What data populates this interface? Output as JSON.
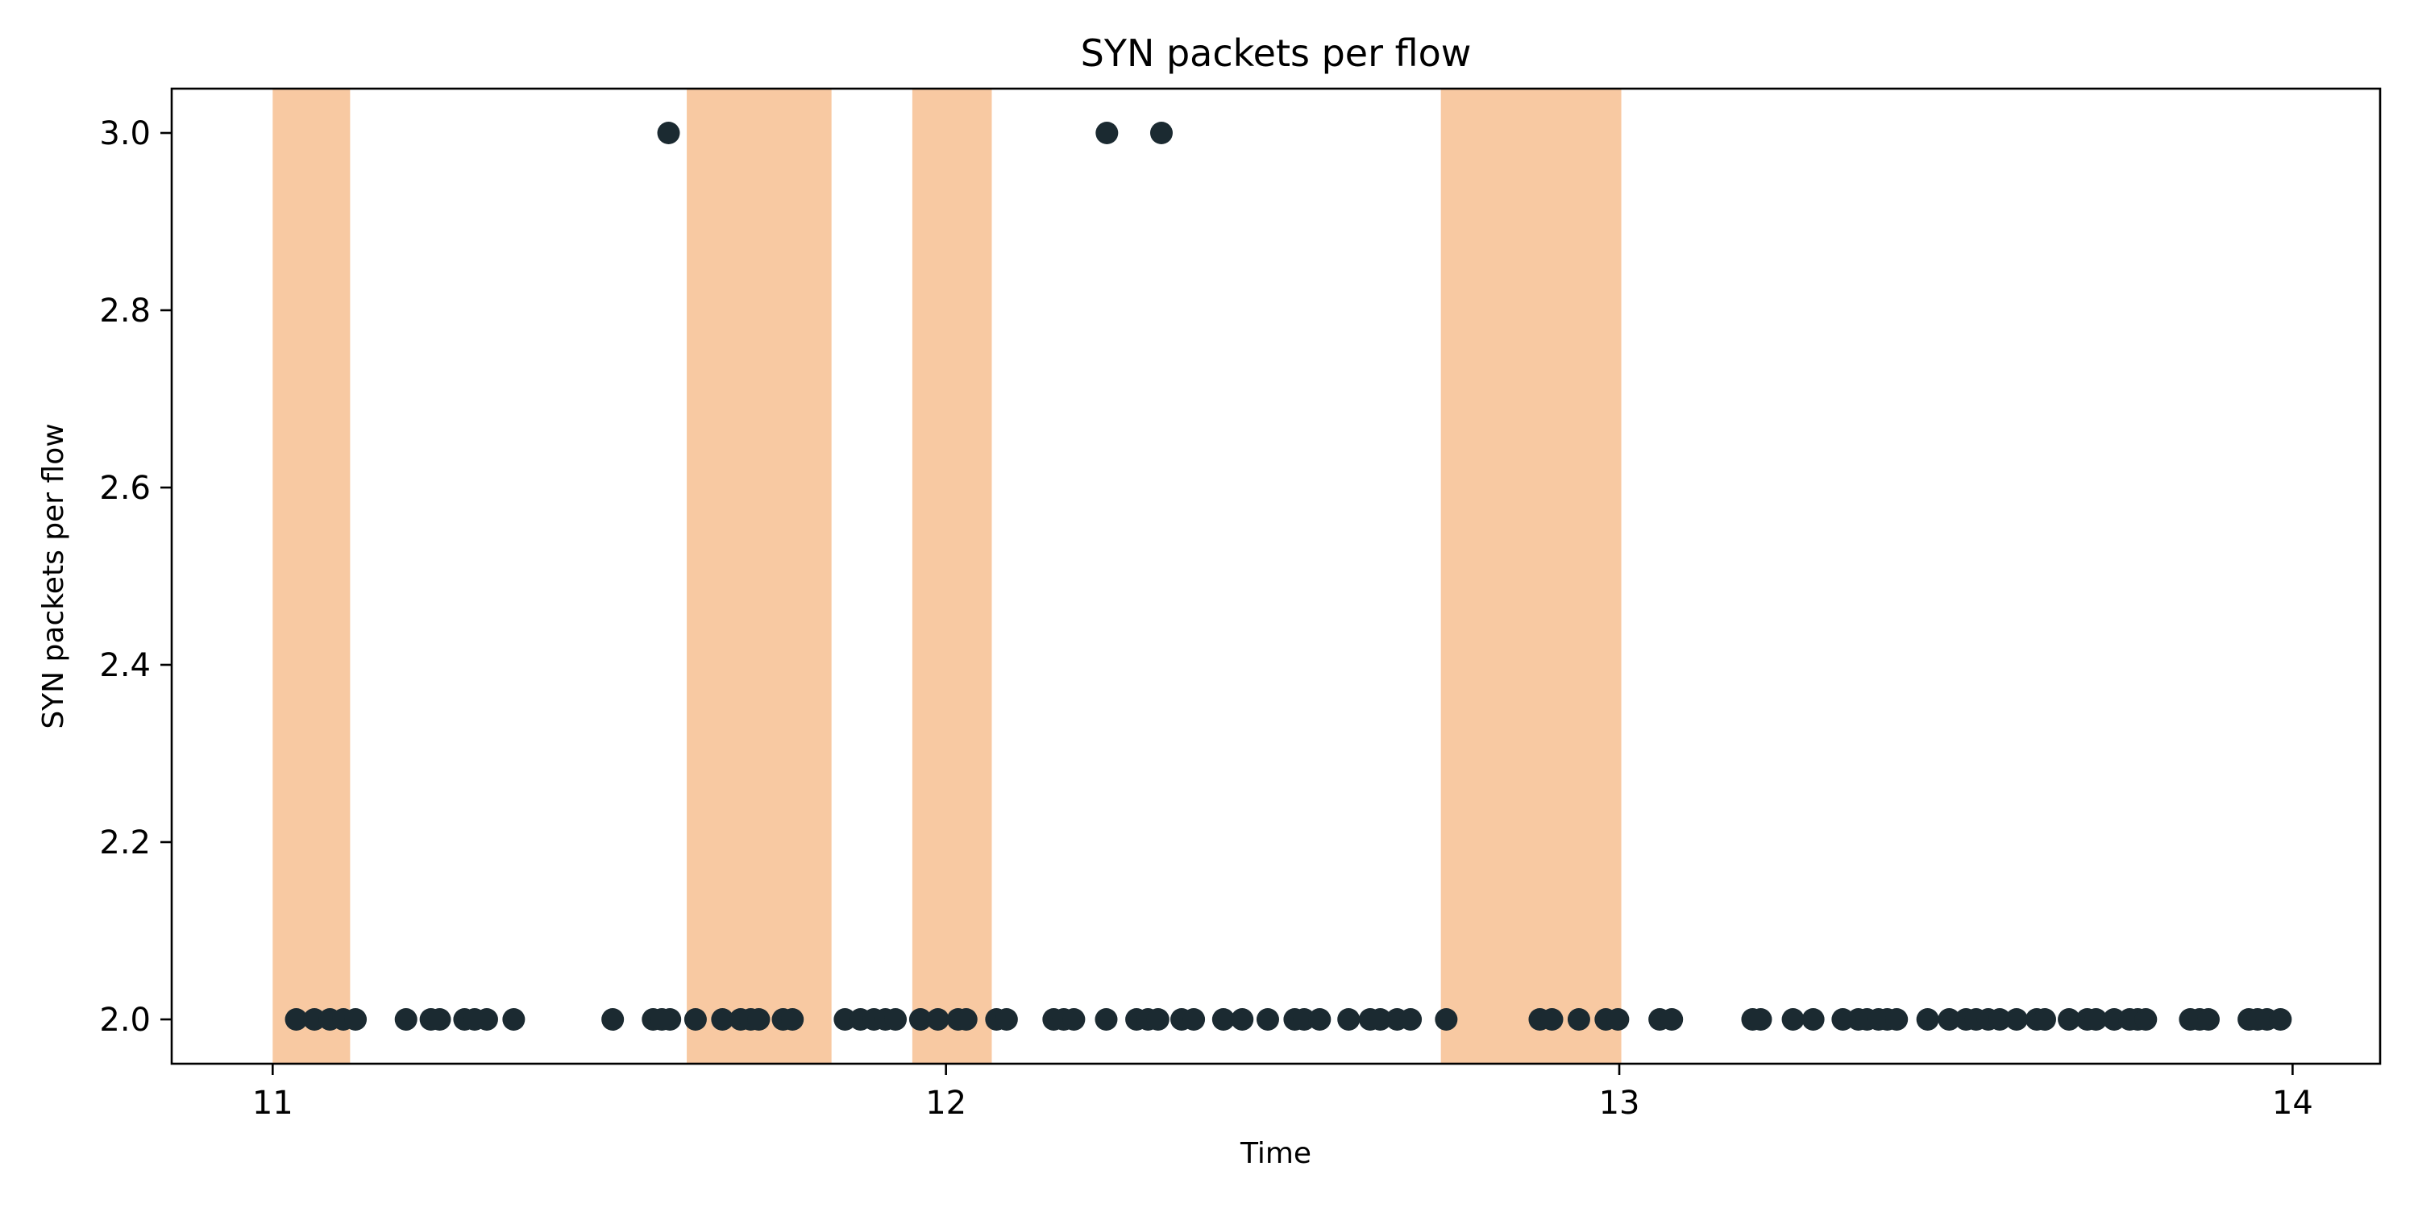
{
  "chart_data": {
    "type": "scatter",
    "title": "SYN packets per flow",
    "xlabel": "Time",
    "ylabel": "SYN packets per flow",
    "xlim": [
      10.85,
      14.13
    ],
    "ylim": [
      1.95,
      3.05
    ],
    "x_ticks": [
      11,
      12,
      13,
      14
    ],
    "y_ticks": [
      2.0,
      2.2,
      2.4,
      2.6,
      2.8,
      3.0
    ],
    "x_tick_labels": [
      "11",
      "12",
      "13",
      "14"
    ],
    "y_tick_labels": [
      "2.0",
      "2.2",
      "2.4",
      "2.6",
      "2.8",
      "3.0"
    ],
    "grid": false,
    "marker_color": "#1b2a31",
    "highlight_color": "#f8c9a2",
    "highlight_ranges": [
      [
        11.0,
        11.115
      ],
      [
        11.615,
        11.83
      ],
      [
        11.95,
        12.068
      ],
      [
        12.735,
        13.003
      ]
    ],
    "series": [
      {
        "points": [
          [
            11.588,
            3.0
          ],
          [
            12.239,
            3.0
          ],
          [
            12.32,
            3.0
          ],
          [
            11.035,
            2.0
          ],
          [
            11.062,
            2.0
          ],
          [
            11.085,
            2.0
          ],
          [
            11.105,
            2.0
          ],
          [
            11.123,
            2.0
          ],
          [
            11.198,
            2.0
          ],
          [
            11.235,
            2.0
          ],
          [
            11.248,
            2.0
          ],
          [
            11.285,
            2.0
          ],
          [
            11.3,
            2.0
          ],
          [
            11.318,
            2.0
          ],
          [
            11.358,
            2.0
          ],
          [
            11.505,
            2.0
          ],
          [
            11.565,
            2.0
          ],
          [
            11.578,
            2.0
          ],
          [
            11.59,
            2.0
          ],
          [
            11.628,
            2.0
          ],
          [
            11.668,
            2.0
          ],
          [
            11.695,
            2.0
          ],
          [
            11.71,
            2.0
          ],
          [
            11.722,
            2.0
          ],
          [
            11.758,
            2.0
          ],
          [
            11.772,
            2.0
          ],
          [
            11.85,
            2.0
          ],
          [
            11.873,
            2.0
          ],
          [
            11.893,
            2.0
          ],
          [
            11.91,
            2.0
          ],
          [
            11.925,
            2.0
          ],
          [
            11.962,
            2.0
          ],
          [
            11.988,
            2.0
          ],
          [
            12.018,
            2.0
          ],
          [
            12.03,
            2.0
          ],
          [
            12.075,
            2.0
          ],
          [
            12.09,
            2.0
          ],
          [
            12.16,
            2.0
          ],
          [
            12.175,
            2.0
          ],
          [
            12.19,
            2.0
          ],
          [
            12.238,
            2.0
          ],
          [
            12.283,
            2.0
          ],
          [
            12.3,
            2.0
          ],
          [
            12.315,
            2.0
          ],
          [
            12.35,
            2.0
          ],
          [
            12.368,
            2.0
          ],
          [
            12.412,
            2.0
          ],
          [
            12.44,
            2.0
          ],
          [
            12.478,
            2.0
          ],
          [
            12.518,
            2.0
          ],
          [
            12.532,
            2.0
          ],
          [
            12.555,
            2.0
          ],
          [
            12.598,
            2.0
          ],
          [
            12.63,
            2.0
          ],
          [
            12.645,
            2.0
          ],
          [
            12.67,
            2.0
          ],
          [
            12.69,
            2.0
          ],
          [
            12.743,
            2.0
          ],
          [
            12.882,
            2.0
          ],
          [
            12.9,
            2.0
          ],
          [
            12.94,
            2.0
          ],
          [
            12.98,
            2.0
          ],
          [
            12.998,
            2.0
          ],
          [
            13.06,
            2.0
          ],
          [
            13.078,
            2.0
          ],
          [
            13.198,
            2.0
          ],
          [
            13.21,
            2.0
          ],
          [
            13.258,
            2.0
          ],
          [
            13.288,
            2.0
          ],
          [
            13.332,
            2.0
          ],
          [
            13.355,
            2.0
          ],
          [
            13.368,
            2.0
          ],
          [
            13.385,
            2.0
          ],
          [
            13.398,
            2.0
          ],
          [
            13.412,
            2.0
          ],
          [
            13.458,
            2.0
          ],
          [
            13.49,
            2.0
          ],
          [
            13.515,
            2.0
          ],
          [
            13.53,
            2.0
          ],
          [
            13.548,
            2.0
          ],
          [
            13.565,
            2.0
          ],
          [
            13.59,
            2.0
          ],
          [
            13.62,
            2.0
          ],
          [
            13.632,
            2.0
          ],
          [
            13.668,
            2.0
          ],
          [
            13.695,
            2.0
          ],
          [
            13.708,
            2.0
          ],
          [
            13.735,
            2.0
          ],
          [
            13.758,
            2.0
          ],
          [
            13.77,
            2.0
          ],
          [
            13.782,
            2.0
          ],
          [
            13.848,
            2.0
          ],
          [
            13.862,
            2.0
          ],
          [
            13.875,
            2.0
          ],
          [
            13.935,
            2.0
          ],
          [
            13.948,
            2.0
          ],
          [
            13.962,
            2.0
          ],
          [
            13.982,
            2.0
          ]
        ]
      }
    ]
  }
}
